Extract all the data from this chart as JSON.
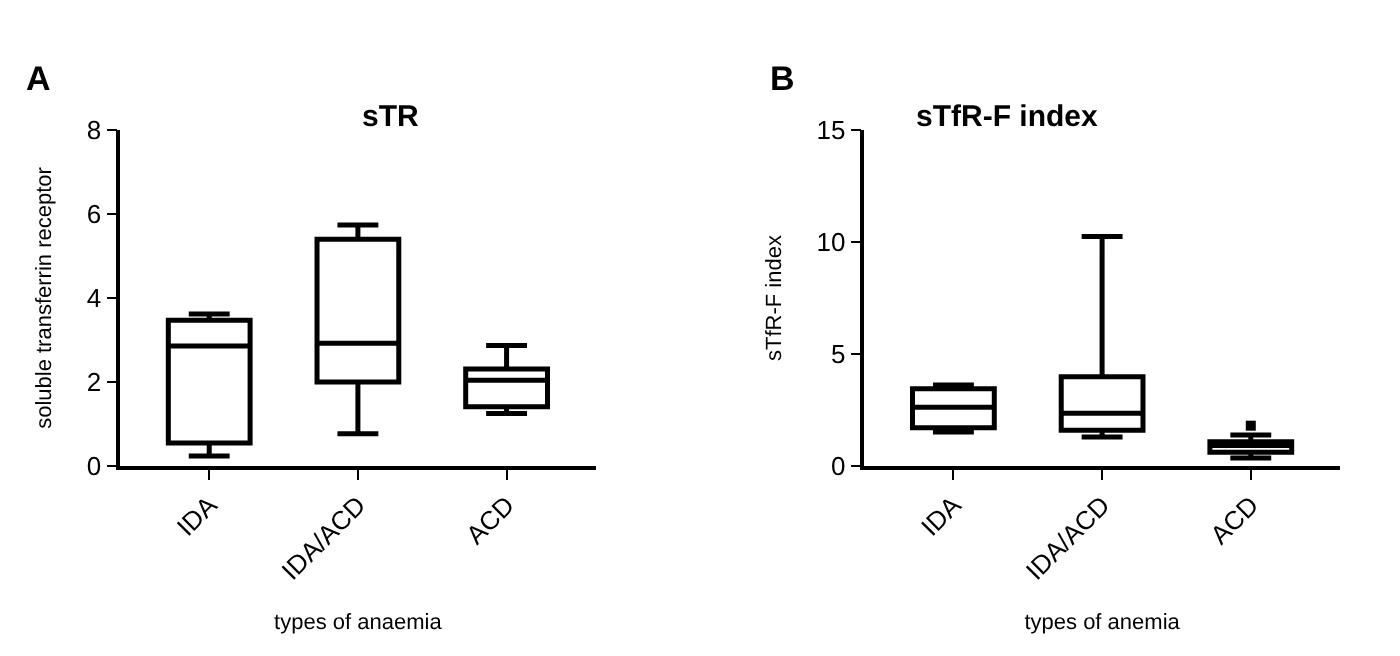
{
  "chart_data": [
    {
      "type": "box",
      "title": "sTR",
      "xlabel": "types of anaemia",
      "ylabel": "soluble transferrin receptor",
      "categories": [
        "IDA",
        "IDA/ACD",
        "ACD"
      ],
      "boxes": [
        {
          "low": 0.24,
          "q1": 0.55,
          "median": 2.86,
          "q3": 3.47,
          "high": 3.62
        },
        {
          "low": 0.77,
          "q1": 2.0,
          "median": 2.92,
          "q3": 5.4,
          "high": 5.74
        },
        {
          "low": 1.25,
          "q1": 1.41,
          "median": 2.04,
          "q3": 2.31,
          "high": 2.87
        }
      ],
      "color": "#000000",
      "ylim": [
        0,
        8
      ],
      "yticks": [
        0,
        2,
        4,
        6,
        8
      ],
      "annotations": [
        "A"
      ]
    },
    {
      "type": "box",
      "title": "sTfR-F index",
      "xlabel": "types of anemia",
      "ylabel": "sTfR-F index",
      "categories": [
        "IDA",
        "IDA/ACD",
        "ACD"
      ],
      "boxes": [
        {
          "low": 1.52,
          "q1": 1.71,
          "median": 2.62,
          "q3": 3.45,
          "high": 3.62
        },
        {
          "low": 1.3,
          "q1": 1.6,
          "median": 2.35,
          "q3": 3.98,
          "high": 10.25
        },
        {
          "low": 0.36,
          "q1": 0.61,
          "median": 0.91,
          "q3": 1.08,
          "high": 1.38,
          "outliers": [
            1.8
          ]
        }
      ],
      "color": "#000000",
      "ylim": [
        0,
        15
      ],
      "yticks": [
        0,
        5,
        10,
        15
      ],
      "annotations": [
        "B"
      ]
    }
  ]
}
